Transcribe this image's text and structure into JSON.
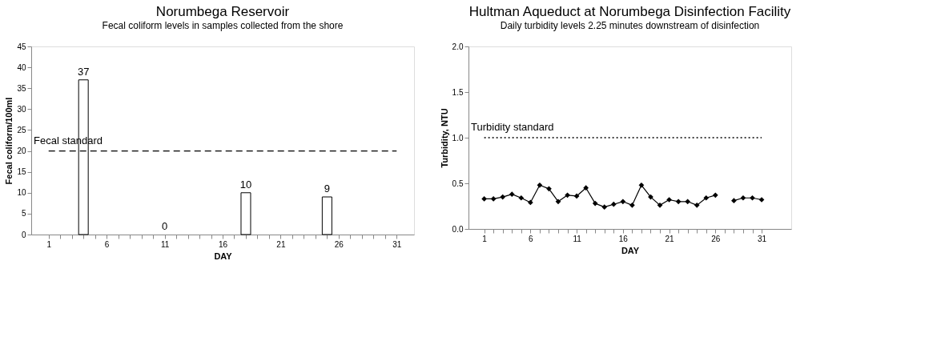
{
  "chart_data": [
    {
      "type": "bar",
      "title": "Norumbega Reservoir",
      "subtitle": "Fecal coliform levels in samples collected from the shore",
      "xlabel": "DAY",
      "ylabel": "Fecal coliform/100ml",
      "x": [
        4,
        11,
        18,
        25
      ],
      "values": [
        37,
        0,
        10,
        9
      ],
      "color": "#ffffff",
      "data_labels": true,
      "xlim": [
        -0.5,
        32.5
      ],
      "ylim": [
        0,
        45
      ],
      "xticks": [
        1,
        {
          "value": 2,
          "label": null
        },
        {
          "value": 3,
          "label": null
        },
        {
          "value": 4,
          "label": null
        },
        {
          "value": 5,
          "label": null
        },
        6,
        {
          "value": 7,
          "label": null
        },
        {
          "value": 8,
          "label": null
        },
        {
          "value": 9,
          "label": null
        },
        {
          "value": 10,
          "label": null
        },
        11,
        {
          "value": 12,
          "label": null
        },
        {
          "value": 13,
          "label": null
        },
        {
          "value": 14,
          "label": null
        },
        {
          "value": 15,
          "label": null
        },
        16,
        {
          "value": 17,
          "label": null
        },
        {
          "value": 18,
          "label": null
        },
        {
          "value": 19,
          "label": null
        },
        {
          "value": 20,
          "label": null
        },
        21,
        {
          "value": 22,
          "label": null
        },
        {
          "value": 23,
          "label": null
        },
        {
          "value": 24,
          "label": null
        },
        {
          "value": 25,
          "label": null
        },
        26,
        {
          "value": 27,
          "label": null
        },
        {
          "value": 28,
          "label": null
        },
        {
          "value": 29,
          "label": null
        },
        {
          "value": 30,
          "label": null
        },
        31
      ],
      "yticks": [
        0,
        5,
        10,
        15,
        20,
        25,
        30,
        35,
        40,
        45
      ],
      "ref_lines": [
        {
          "axis": "y",
          "value": 20,
          "label": "Fecal standard",
          "line_style": "dashed",
          "color": "#000000"
        }
      ]
    },
    {
      "type": "line",
      "title": "Hultman Aqueduct at Norumbega Disinfection Facility",
      "subtitle": "Daily turbidity levels 2.25 minutes downstream of disinfection",
      "xlabel": "DAY",
      "ylabel": "Turbidity, NTU",
      "x": [
        1,
        2,
        3,
        4,
        5,
        6,
        7,
        8,
        9,
        10,
        11,
        12,
        13,
        14,
        15,
        16,
        17,
        18,
        19,
        20,
        21,
        22,
        23,
        24,
        25,
        26,
        27,
        28,
        29,
        30,
        31
      ],
      "values": [
        0.33,
        0.33,
        0.35,
        0.38,
        0.34,
        0.29,
        0.48,
        0.44,
        0.3,
        0.37,
        0.36,
        0.45,
        0.28,
        0.24,
        0.27,
        0.3,
        0.26,
        0.48,
        0.35,
        0.26,
        0.32,
        0.3,
        0.3,
        0.26,
        0.34,
        0.37,
        null,
        0.31,
        0.34,
        0.34,
        0.32
      ],
      "color": "#000000",
      "marker": "diamond",
      "line_style": "solid",
      "xlim": [
        -0.7,
        34.2
      ],
      "ylim": [
        0,
        2
      ],
      "xticks": [
        1,
        {
          "value": 2,
          "label": null
        },
        {
          "value": 3,
          "label": null
        },
        {
          "value": 4,
          "label": null
        },
        {
          "value": 5,
          "label": null
        },
        6,
        {
          "value": 7,
          "label": null
        },
        {
          "value": 8,
          "label": null
        },
        {
          "value": 9,
          "label": null
        },
        {
          "value": 10,
          "label": null
        },
        11,
        {
          "value": 12,
          "label": null
        },
        {
          "value": 13,
          "label": null
        },
        {
          "value": 14,
          "label": null
        },
        {
          "value": 15,
          "label": null
        },
        16,
        {
          "value": 17,
          "label": null
        },
        {
          "value": 18,
          "label": null
        },
        {
          "value": 19,
          "label": null
        },
        {
          "value": 20,
          "label": null
        },
        21,
        {
          "value": 22,
          "label": null
        },
        {
          "value": 23,
          "label": null
        },
        {
          "value": 24,
          "label": null
        },
        {
          "value": 25,
          "label": null
        },
        26,
        {
          "value": 27,
          "label": null
        },
        {
          "value": 28,
          "label": null
        },
        {
          "value": 29,
          "label": null
        },
        {
          "value": 30,
          "label": null
        },
        31
      ],
      "yticks": [
        {
          "value": 0,
          "label": "0.0"
        },
        {
          "value": 0.5,
          "label": "0.5"
        },
        {
          "value": 1,
          "label": "1.0"
        },
        {
          "value": 1.5,
          "label": "1.5"
        },
        {
          "value": 2,
          "label": "2.0"
        }
      ],
      "ref_lines": [
        {
          "axis": "y",
          "value": 1,
          "label": "Turbidity standard",
          "line_style": "dotted",
          "color": "#000000"
        }
      ]
    }
  ]
}
